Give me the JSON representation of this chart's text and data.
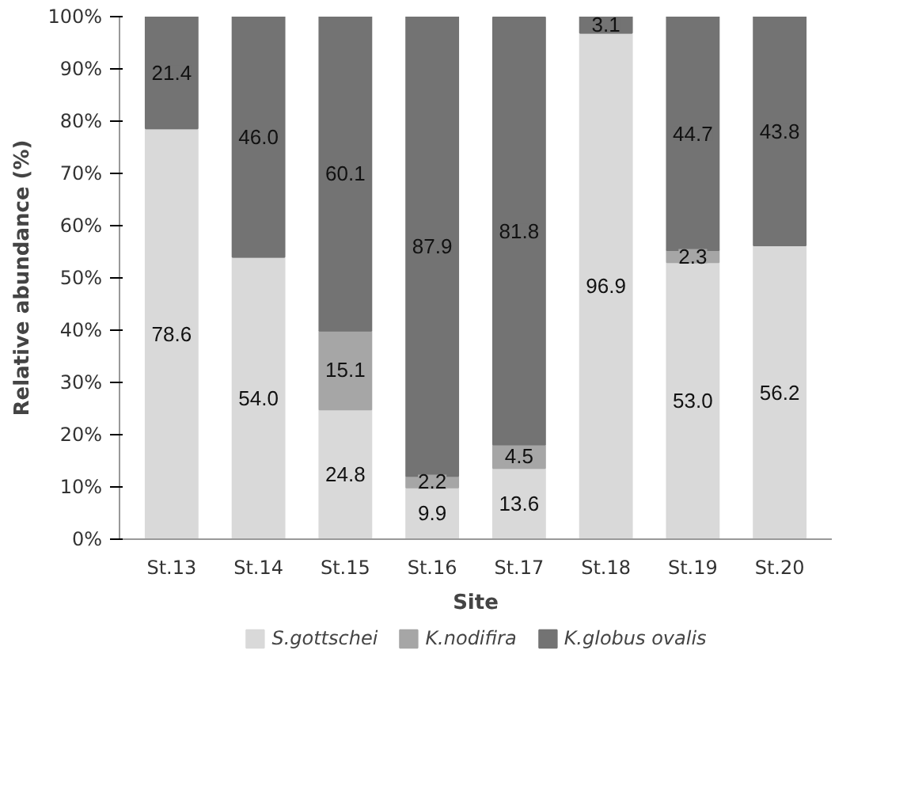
{
  "chart_data": {
    "type": "bar",
    "stacked": true,
    "xlabel": "Site",
    "ylabel": "Relative abundance (%)",
    "categories": [
      "St.13",
      "St.14",
      "St.15",
      "St.16",
      "St.17",
      "St.18",
      "St.19",
      "St.20"
    ],
    "ylim": [
      0,
      100
    ],
    "yticks": [
      {
        "value": 0,
        "label": "0%"
      },
      {
        "value": 10,
        "label": "10%"
      },
      {
        "value": 20,
        "label": "20%"
      },
      {
        "value": 30,
        "label": "30%"
      },
      {
        "value": 40,
        "label": "40%"
      },
      {
        "value": 50,
        "label": "50%"
      },
      {
        "value": 60,
        "label": "60%"
      },
      {
        "value": 70,
        "label": "70%"
      },
      {
        "value": 80,
        "label": "80%"
      },
      {
        "value": 90,
        "label": "90%"
      },
      {
        "value": 100,
        "label": "100%"
      }
    ],
    "grid": false,
    "legend": "bottom",
    "series": [
      {
        "name": "S.gottschei",
        "color": "#d9d9d9",
        "values": [
          78.6,
          54.0,
          24.8,
          9.9,
          13.6,
          96.9,
          53.0,
          56.2
        ],
        "value_labels": [
          "78.6",
          "54.0",
          "24.8",
          "9.9",
          "13.6",
          "96.9",
          "53.0",
          "56.2"
        ]
      },
      {
        "name": "K.nodifira",
        "color": "#a6a6a6",
        "values": [
          0,
          0,
          15.1,
          2.2,
          4.5,
          0,
          2.3,
          0
        ],
        "value_labels": [
          null,
          null,
          "15.1",
          "2.2",
          "4.5",
          null,
          "2.3",
          null
        ]
      },
      {
        "name": "K.globus ovalis",
        "color": "#737373",
        "values": [
          21.4,
          46.0,
          60.1,
          87.9,
          81.8,
          3.1,
          44.7,
          43.8
        ],
        "value_labels": [
          "21.4",
          "46.0",
          "60.1",
          "87.9",
          "81.8",
          "3.1",
          "44.7",
          "43.8"
        ]
      }
    ]
  }
}
